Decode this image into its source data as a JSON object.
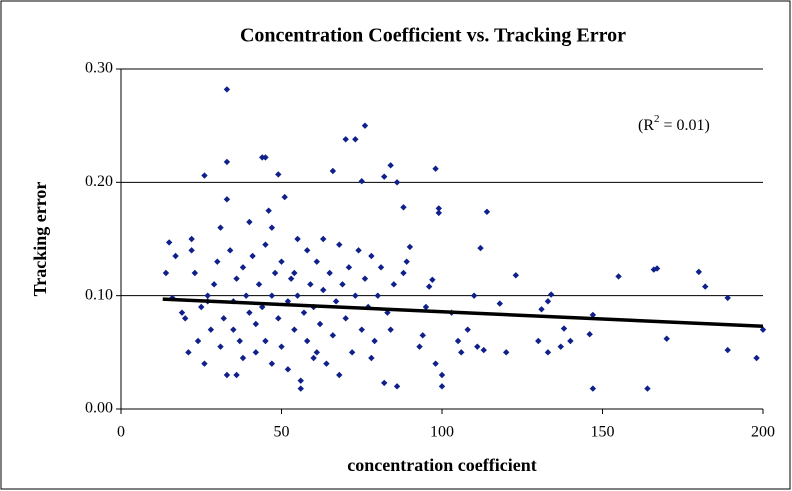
{
  "chart_data": {
    "type": "scatter",
    "title": "Concentration Coefficient vs. Tracking Error",
    "xlabel": "concentration coefficient",
    "ylabel": "Tracking error",
    "annotation": {
      "prefix": "(R",
      "sup": "2",
      "suffix": " = 0.01)"
    },
    "color": "#10208a",
    "xlim": [
      0,
      200
    ],
    "xticks": [
      0,
      50,
      100,
      150,
      200
    ],
    "ylim": [
      0,
      0.3
    ],
    "yticks": [
      {
        "value": 0,
        "label": "0.00"
      },
      {
        "value": 0.1,
        "label": "0.10"
      },
      {
        "value": 0.2,
        "label": "0.20"
      },
      {
        "value": 0.3,
        "label": "0.30"
      }
    ],
    "grid": true,
    "trendline": {
      "x": [
        13,
        200
      ],
      "y": [
        0.097,
        0.073
      ],
      "color": "#000000"
    },
    "x": [
      33,
      76,
      70,
      73,
      44,
      45,
      33,
      26,
      49,
      66,
      84,
      98,
      75,
      82,
      155,
      166,
      167,
      180,
      182,
      189,
      189,
      198,
      200,
      170,
      147,
      164,
      147,
      146,
      138,
      140,
      137,
      133,
      134,
      131,
      130,
      133,
      123,
      118,
      120,
      114,
      112,
      110,
      113,
      111,
      106,
      105,
      103,
      108,
      100,
      100,
      98,
      99,
      99,
      97,
      96,
      95,
      93,
      94,
      88,
      86,
      90,
      89,
      88,
      85,
      84,
      82,
      86,
      78,
      14,
      15,
      16,
      17,
      19,
      20,
      21,
      22,
      22,
      23,
      24,
      25,
      26,
      27,
      28,
      29,
      30,
      31,
      31,
      32,
      33,
      33,
      34,
      35,
      35,
      36,
      37,
      38,
      38,
      39,
      40,
      40,
      41,
      42,
      42,
      43,
      44,
      45,
      45,
      46,
      47,
      47,
      48,
      49,
      50,
      50,
      51,
      52,
      52,
      53,
      54,
      55,
      55,
      56,
      57,
      58,
      58,
      59,
      60,
      60,
      61,
      62,
      63,
      63,
      64,
      65,
      66,
      67,
      68,
      68,
      69,
      70,
      71,
      72,
      73,
      74,
      75,
      76,
      77,
      78,
      79,
      80,
      81,
      83,
      56,
      27,
      36,
      61,
      47,
      54
    ],
    "y": [
      0.282,
      0.25,
      0.238,
      0.238,
      0.222,
      0.222,
      0.218,
      0.206,
      0.207,
      0.21,
      0.215,
      0.212,
      0.201,
      0.205,
      0.117,
      0.123,
      0.124,
      0.121,
      0.108,
      0.098,
      0.052,
      0.045,
      0.07,
      0.062,
      0.018,
      0.018,
      0.083,
      0.066,
      0.071,
      0.06,
      0.055,
      0.095,
      0.101,
      0.088,
      0.06,
      0.05,
      0.118,
      0.093,
      0.05,
      0.174,
      0.142,
      0.1,
      0.052,
      0.055,
      0.05,
      0.06,
      0.085,
      0.07,
      0.02,
      0.03,
      0.04,
      0.173,
      0.177,
      0.114,
      0.108,
      0.09,
      0.055,
      0.065,
      0.178,
      0.2,
      0.143,
      0.13,
      0.12,
      0.11,
      0.07,
      0.023,
      0.02,
      0.045,
      0.12,
      0.147,
      0.098,
      0.135,
      0.085,
      0.08,
      0.05,
      0.15,
      0.14,
      0.12,
      0.06,
      0.09,
      0.04,
      0.1,
      0.07,
      0.11,
      0.13,
      0.055,
      0.16,
      0.08,
      0.185,
      0.03,
      0.14,
      0.095,
      0.07,
      0.115,
      0.06,
      0.125,
      0.045,
      0.1,
      0.085,
      0.165,
      0.135,
      0.075,
      0.05,
      0.11,
      0.09,
      0.145,
      0.06,
      0.175,
      0.1,
      0.04,
      0.12,
      0.08,
      0.13,
      0.055,
      0.187,
      0.095,
      0.035,
      0.115,
      0.07,
      0.15,
      0.1,
      0.025,
      0.085,
      0.14,
      0.06,
      0.11,
      0.09,
      0.045,
      0.13,
      0.075,
      0.105,
      0.15,
      0.04,
      0.12,
      0.065,
      0.095,
      0.145,
      0.03,
      0.11,
      0.08,
      0.125,
      0.05,
      0.1,
      0.14,
      0.07,
      0.115,
      0.09,
      0.135,
      0.06,
      0.1,
      0.125,
      0.085,
      0.018,
      0.095,
      0.03,
      0.05,
      0.16,
      0.12
    ]
  }
}
